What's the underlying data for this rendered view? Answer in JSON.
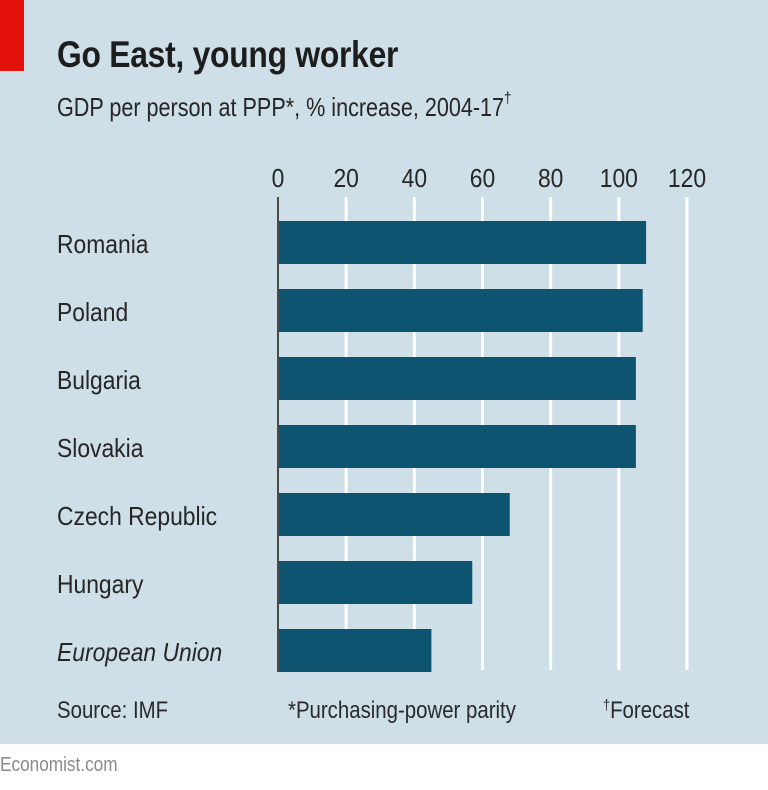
{
  "colors": {
    "background": "#cedfe8",
    "bar": "#0d5470",
    "accent_red": "#e3120b",
    "gridline": "#ffffff",
    "axis": "#4a4a4a"
  },
  "chart_data": {
    "type": "bar",
    "orientation": "horizontal",
    "title": "Go East, young worker",
    "subtitle": "GDP per person at PPP*, % increase, 2004-17",
    "subtitle_mark": "†",
    "categories": [
      "Romania",
      "Poland",
      "Bulgaria",
      "Slovakia",
      "Czech Republic",
      "Hungary",
      "European Union"
    ],
    "italic_categories": [
      "European Union"
    ],
    "values": [
      108,
      107,
      105,
      105,
      68,
      57,
      45
    ],
    "xlim": [
      0,
      120
    ],
    "xticks": [
      "0",
      "20",
      "40",
      "60",
      "80",
      "100",
      "120"
    ],
    "xtick_values": [
      0,
      20,
      40,
      60,
      80,
      100,
      120
    ],
    "tick_position": "top",
    "grid": true,
    "xlabel": "",
    "ylabel": ""
  },
  "footer": {
    "source": "Source: IMF",
    "note1": "*Purchasing-power parity",
    "note2_mark": "†",
    "note2": "Forecast"
  },
  "brand": "Economist.com"
}
